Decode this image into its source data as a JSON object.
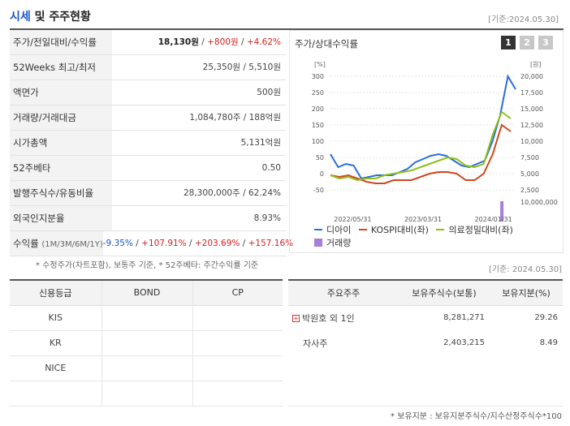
{
  "header": {
    "title_blue": "시세",
    "title_rest": " 및 주주현황",
    "date": "[기준:2024.05.30]"
  },
  "info": {
    "price_label": "주가/전일대비/수익률",
    "price": "18,130원",
    "change": "+800원",
    "change_pct": "+4.62%",
    "week52_label": "52Weeks 최고/최저",
    "week52": "25,350원 / 5,510원",
    "face_label": "액면가",
    "face": "500원",
    "volume_label": "거래량/거래대금",
    "volume": "1,084,780주 / 188억원",
    "mcap_label": "시가총액",
    "mcap": "5,131억원",
    "beta_label": "52주베타",
    "beta": "0.50",
    "shares_label": "발행주식수/유동비율",
    "shares": "28,300,000주 / 62.24%",
    "foreign_label": "외국인지분율",
    "foreign": "8.93%",
    "return_label": "수익률",
    "return_periods": "(1M/3M/6M/1Y)",
    "r1m": "-9.35%",
    "r3m": "+107.91%",
    "r6m": "+203.69%",
    "r1y": "+157.16%"
  },
  "note1": "* 수정주가(차트포함), 보통주 기준, * 52주베타: 주간수익률 기준",
  "chart_panel": {
    "title": "주가/상대수익률",
    "tabs": [
      "1",
      "2",
      "3"
    ]
  },
  "chart_data": {
    "type": "line",
    "left_unit": "[%]",
    "right_unit": "[원]",
    "left_ticks": [
      "300",
      "250",
      "200",
      "150",
      "100",
      "50",
      "0",
      "-50"
    ],
    "right_ticks": [
      "20,000",
      "17,500",
      "15,000",
      "12,500",
      "10,000",
      "7,500",
      "5,000",
      "2,500"
    ],
    "volume_tick": "10,000,000",
    "volume_zero": "0",
    "x_labels": [
      "2022/05/31",
      "2023/03/31",
      "2024/01/31"
    ],
    "ylim_left": [
      -50,
      300
    ],
    "series": [
      {
        "name": "디아이",
        "color": "#2a6fd6",
        "values": [
          60,
          20,
          30,
          25,
          -15,
          -10,
          -5,
          -5,
          -5,
          5,
          15,
          35,
          45,
          55,
          60,
          55,
          40,
          25,
          20,
          30,
          40,
          100,
          180,
          300,
          260
        ]
      },
      {
        "name": "KOSPI대비(좌)",
        "color": "#d2461e",
        "values": [
          -5,
          -10,
          -5,
          -15,
          -25,
          -30,
          -30,
          -20,
          -20,
          -20,
          -10,
          0,
          5,
          5,
          0,
          -20,
          -20,
          0,
          60,
          150,
          130
        ]
      },
      {
        "name": "의료정밀대비(좌)",
        "color": "#8ec01a",
        "values": [
          -5,
          -15,
          -10,
          -20,
          -15,
          -15,
          -5,
          0,
          5,
          10,
          20,
          30,
          40,
          50,
          45,
          25,
          20,
          30,
          120,
          190,
          170
        ]
      },
      {
        "name": "거래량",
        "color": "#a57fd8",
        "values": [
          0,
          0,
          0,
          0,
          0,
          0,
          0,
          0,
          0,
          0,
          0,
          0,
          0,
          0,
          0,
          0,
          0,
          0,
          0.1,
          0,
          0,
          0,
          0,
          0.1,
          0.2,
          1,
          0.2,
          0.1
        ]
      }
    ]
  },
  "date2": "[기준: 2024.05.30]",
  "credit": {
    "headers": [
      "신용등급",
      "BOND",
      "CP"
    ],
    "rows": [
      [
        "KIS",
        "",
        ""
      ],
      [
        "KR",
        "",
        ""
      ],
      [
        "NICE",
        "",
        ""
      ],
      [
        "",
        "",
        ""
      ]
    ]
  },
  "holders": {
    "headers": [
      "주요주주",
      "보유주식수(보통)",
      "보유지분(%)"
    ],
    "rows": [
      [
        "박원호 외 1인",
        "8,281,271",
        "29.26"
      ],
      [
        "자사주",
        "2,403,215",
        "8.49"
      ],
      [
        "",
        "",
        ""
      ],
      [
        "",
        "",
        ""
      ]
    ],
    "plus_icon": "+"
  },
  "note2": "* 보유지분 : 보유지분주식수/지수산정주식수*100"
}
